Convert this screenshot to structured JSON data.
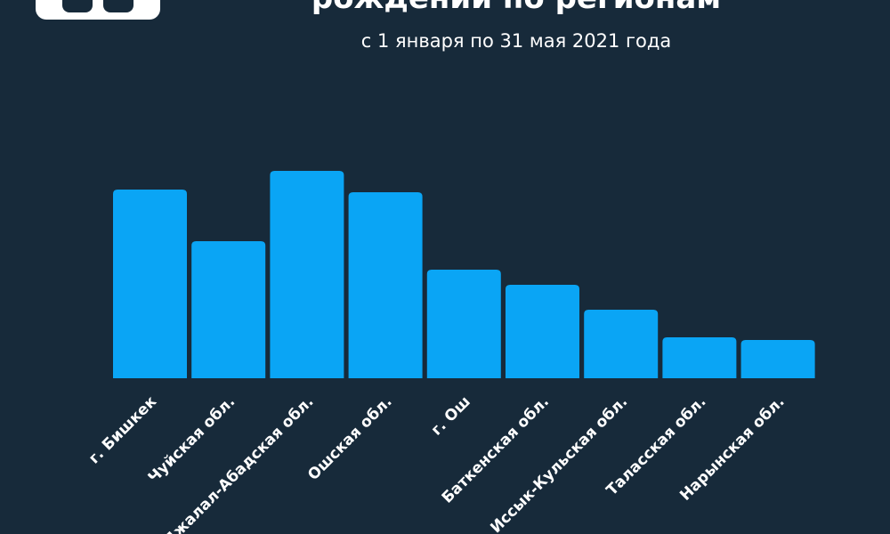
{
  "header": {
    "title": "рождений по регионам",
    "subtitle": "с 1 января по 31 мая 2021 года"
  },
  "colors": {
    "background": "#172a3a",
    "bar": "#0aa5f5",
    "text": "#ffffff"
  },
  "chart_data": {
    "type": "bar",
    "categories": [
      "г. Бишкек",
      "Чуйская обл.",
      "Джалал-Абадская обл.",
      "Ошская обл.",
      "г. Ош",
      "Баткенская обл.",
      "Иссык-Кульская обл.",
      "Таласская обл.",
      "Нарынская обл."
    ],
    "values": [
      212,
      154,
      233,
      209,
      122,
      105,
      77,
      46,
      43
    ],
    "title": "рождений по регионам",
    "subtitle": "с 1 января по 31 мая 2021 года",
    "ylim": [
      0,
      233
    ],
    "grid": false,
    "legend": "none"
  }
}
